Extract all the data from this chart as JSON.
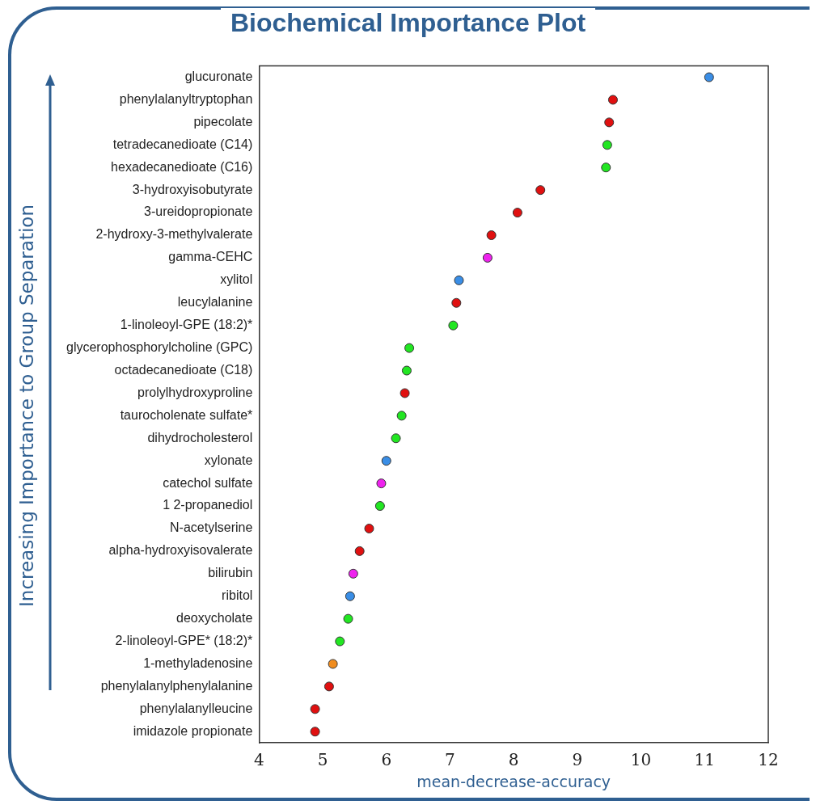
{
  "chart_data": {
    "type": "scatter",
    "title": "Biochemical Importance Plot",
    "xlabel": "mean-decrease-accuracy",
    "ylabel": "Increasing Importance to Group Separation",
    "orientation": "horizontal",
    "marker": "circle",
    "categories": [
      "glucuronate",
      "phenylalanyltryptophan",
      "pipecolate",
      "tetradecanedioate (C14)",
      "hexadecanedioate (C16)",
      "3-hydroxyisobutyrate",
      "3-ureidopropionate",
      "2-hydroxy-3-methylvalerate",
      "gamma-CEHC",
      "xylitol",
      "leucylalanine",
      "1-linoleoyl-GPE (18:2)*",
      "glycerophosphorylcholine (GPC)",
      "octadecanedioate (C18)",
      "prolylhydroxyproline",
      "taurocholenate sulfate*",
      "dihydrocholesterol",
      "xylonate",
      "catechol sulfate",
      "1 2-propanediol",
      "N-acetylserine",
      "alpha-hydroxyisovalerate",
      "bilirubin",
      "ribitol",
      "deoxycholate",
      "2-linoleoyl-GPE* (18:2)*",
      "1-methyladenosine",
      "phenylalanylphenylalanine",
      "phenylalanylleucine",
      "imidazole propionate"
    ],
    "values": [
      11.07,
      9.56,
      9.5,
      9.47,
      9.45,
      8.42,
      8.06,
      7.65,
      7.59,
      7.14,
      7.1,
      7.05,
      6.36,
      6.32,
      6.29,
      6.24,
      6.15,
      6.0,
      5.92,
      5.9,
      5.73,
      5.58,
      5.48,
      5.43,
      5.4,
      5.27,
      5.16,
      5.1,
      4.88,
      4.88
    ],
    "colors": [
      "#3a8ee6",
      "#e01010",
      "#e01010",
      "#22e622",
      "#22e622",
      "#e01010",
      "#e01010",
      "#e01010",
      "#ee22ee",
      "#3a8ee6",
      "#e01010",
      "#22e622",
      "#22e622",
      "#22e622",
      "#e01010",
      "#22e622",
      "#22e622",
      "#3a8ee6",
      "#ee22ee",
      "#22e622",
      "#e01010",
      "#e01010",
      "#ee22ee",
      "#3a8ee6",
      "#22e622",
      "#22e622",
      "#f08c1e",
      "#e01010",
      "#e01010",
      "#e01010"
    ],
    "xlim": [
      4,
      12
    ],
    "xticks": [
      4,
      5,
      6,
      7,
      8,
      9,
      10,
      11,
      12
    ]
  }
}
